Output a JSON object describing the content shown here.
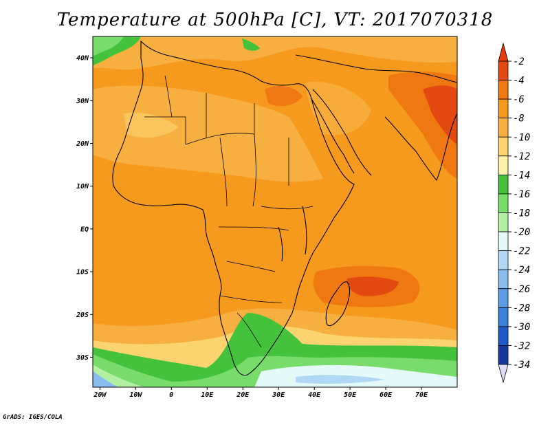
{
  "title": "Temperature at 500hPa [C], VT: 2017070318",
  "credit": "GrADS: IGES/COLA",
  "map": {
    "lon_range": [
      -22,
      80
    ],
    "lat_range": [
      -37,
      45
    ],
    "x_ticks": [
      {
        "value": -20,
        "label": "20W"
      },
      {
        "value": -10,
        "label": "10W"
      },
      {
        "value": 0,
        "label": "0"
      },
      {
        "value": 10,
        "label": "10E"
      },
      {
        "value": 20,
        "label": "20E"
      },
      {
        "value": 30,
        "label": "30E"
      },
      {
        "value": 40,
        "label": "40E"
      },
      {
        "value": 50,
        "label": "50E"
      },
      {
        "value": 60,
        "label": "60E"
      },
      {
        "value": 70,
        "label": "70E"
      }
    ],
    "y_ticks": [
      {
        "value": 40,
        "label": "40N"
      },
      {
        "value": 30,
        "label": "30N"
      },
      {
        "value": 20,
        "label": "20N"
      },
      {
        "value": 10,
        "label": "10N"
      },
      {
        "value": 0,
        "label": "EQ"
      },
      {
        "value": -10,
        "label": "10S"
      },
      {
        "value": -20,
        "label": "20S"
      },
      {
        "value": -30,
        "label": "30S"
      }
    ]
  },
  "colorbar": {
    "levels": [
      "-2",
      "-4",
      "-6",
      "-8",
      "-10",
      "-12",
      "-14",
      "-16",
      "-18",
      "-20",
      "-22",
      "-24",
      "-26",
      "-28",
      "-30",
      "-32",
      "-34"
    ],
    "colors": [
      "#e24a12",
      "#f07810",
      "#f69a1e",
      "#f7b040",
      "#fbd470",
      "#fdf0a8",
      "#44c23c",
      "#78dc6a",
      "#b4f0a4",
      "#e4faf8",
      "#b0d8f4",
      "#88bcec",
      "#5c9ce4",
      "#3c80dc",
      "#2058c8",
      "#1438a0",
      "#0c1c70"
    ],
    "top_arrow_color": "#e63c0c",
    "bottom_arrow_color": "#e0dcf8"
  }
}
